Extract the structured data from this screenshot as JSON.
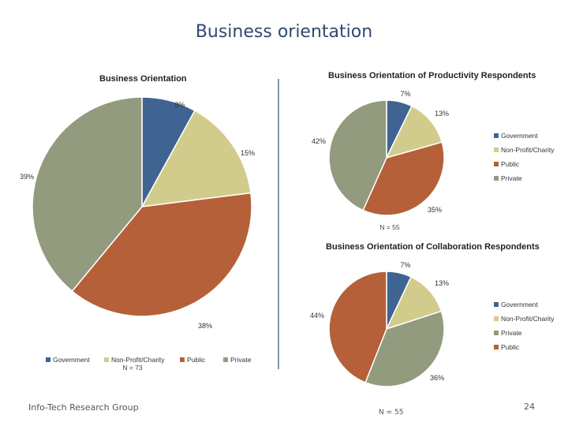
{
  "slide": {
    "title": "Business orientation",
    "footer": "Info-Tech Research Group",
    "page_number": "24",
    "bottom_n": "N = 55"
  },
  "colors": {
    "Government": "#3f6491",
    "Non-Profit/Charity": "#d2cc8c",
    "Public": "#b56039",
    "Private": "#939b7e"
  },
  "chart_data": [
    {
      "type": "pie",
      "title": "Business Orientation",
      "categories": [
        "Government",
        "Non-Profit/Charity",
        "Public",
        "Private"
      ],
      "values": [
        8,
        15,
        38,
        39
      ],
      "labels": [
        "8%",
        "15%",
        "38%",
        "39%"
      ],
      "legend": "bottom",
      "n_label": "N = 73"
    },
    {
      "type": "pie",
      "title": "Business Orientation of Productivity Respondents",
      "categories": [
        "Government",
        "Non-Profit/Charity",
        "Public",
        "Private"
      ],
      "values": [
        7,
        13,
        35,
        42
      ],
      "labels": [
        "7%",
        "13%",
        "35%",
        "42%"
      ],
      "legend": "right",
      "n_label": "N = 55"
    },
    {
      "type": "pie",
      "title": "Business Orientation of Collaboration Respondents",
      "categories": [
        "Government",
        "Non-Profit/Charity",
        "Private",
        "Public"
      ],
      "values": [
        7,
        13,
        36,
        44
      ],
      "labels": [
        "7%",
        "13%",
        "36%",
        "44%"
      ],
      "legend": "right",
      "n_label": ""
    }
  ]
}
